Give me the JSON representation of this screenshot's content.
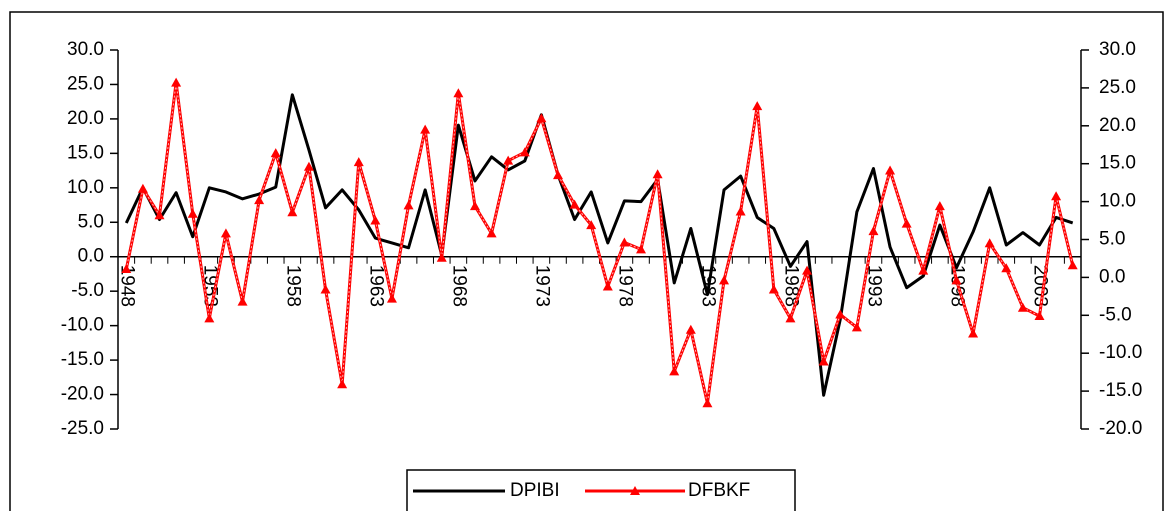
{
  "chart_data": {
    "type": "line",
    "categories": [
      "1948",
      null,
      null,
      null,
      null,
      "1953",
      null,
      null,
      null,
      null,
      "1958",
      null,
      null,
      null,
      null,
      "1963",
      null,
      null,
      null,
      null,
      "1968",
      null,
      null,
      null,
      null,
      "1973",
      null,
      null,
      null,
      null,
      "1978",
      null,
      null,
      null,
      null,
      "1983",
      null,
      null,
      null,
      null,
      "1988",
      null,
      null,
      null,
      null,
      "1993",
      null,
      null,
      null,
      null,
      "1998",
      null,
      null,
      null,
      null,
      "2003",
      null,
      null
    ],
    "series": [
      {
        "name": "DPIBI",
        "color": "#000000",
        "axis": "y",
        "values": [
          4.9,
          10.0,
          5.4,
          9.3,
          2.9,
          10.0,
          9.4,
          8.4,
          9.1,
          10.1,
          23.5,
          15.5,
          7.1,
          9.7,
          6.8,
          2.7,
          2.0,
          1.3,
          9.7,
          0.2,
          19.1,
          11.0,
          14.5,
          12.6,
          13.9,
          20.6,
          11.9,
          5.4,
          9.4,
          2.0,
          8.1,
          8.0,
          11.2,
          -3.8,
          4.1,
          -5.5,
          9.7,
          11.7,
          5.7,
          4.1,
          -1.4,
          2.2,
          -20.1,
          -9.1,
          6.5,
          12.8,
          1.4,
          -4.5,
          -2.8,
          4.6,
          -1.6,
          3.6,
          10.0,
          1.7,
          3.5,
          1.7,
          5.7,
          4.9
        ]
      },
      {
        "name": "DFBKF",
        "color": "#ff0000",
        "axis": "y2",
        "values": [
          1.1,
          11.7,
          8.2,
          25.7,
          8.4,
          -5.4,
          5.8,
          -3.2,
          10.2,
          16.4,
          8.6,
          14.6,
          -1.6,
          -14.1,
          15.2,
          7.5,
          -2.8,
          9.5,
          19.5,
          2.6,
          24.3,
          9.4,
          5.8,
          15.4,
          16.5,
          21.0,
          13.5,
          9.6,
          6.9,
          -1.2,
          4.6,
          3.7,
          13.6,
          -12.4,
          -6.9,
          -16.6,
          -0.4,
          8.7,
          22.6,
          -1.6,
          -5.4,
          0.9,
          -11.1,
          -4.9,
          -6.6,
          6.1,
          14.1,
          7.1,
          0.9,
          9.4,
          -0.4,
          -7.4,
          4.5,
          1.2,
          -4.0,
          -5.1,
          10.7,
          1.6
        ]
      }
    ],
    "ylim": [
      -25,
      30
    ],
    "yticks": [
      {
        "value": 30,
        "label": "30.0"
      },
      {
        "value": 25,
        "label": "25.0"
      },
      {
        "value": 20,
        "label": "20.0"
      },
      {
        "value": 15,
        "label": "15.0"
      },
      {
        "value": 10,
        "label": "10.0"
      },
      {
        "value": 5,
        "label": "5.0"
      },
      {
        "value": 0,
        "label": "0.0"
      },
      {
        "value": -5,
        "label": "-5.0"
      },
      {
        "value": -10,
        "label": "-10.0"
      },
      {
        "value": -15,
        "label": "-15.0"
      },
      {
        "value": -20,
        "label": "-20.0"
      },
      {
        "value": -25,
        "label": "-25.0"
      }
    ],
    "y2lim": [
      -20,
      30
    ],
    "y2ticks": [
      {
        "value": 30,
        "label": "30.0"
      },
      {
        "value": 25,
        "label": "25.0"
      },
      {
        "value": 20,
        "label": "20.0"
      },
      {
        "value": 15,
        "label": "15.0"
      },
      {
        "value": 10,
        "label": "10.0"
      },
      {
        "value": 5,
        "label": "5.0"
      },
      {
        "value": 0,
        "label": "0.0"
      },
      {
        "value": -5,
        "label": "-5.0"
      },
      {
        "value": -10,
        "label": "-10.0"
      },
      {
        "value": -15,
        "label": "-15.0"
      },
      {
        "value": -20,
        "label": "-20.0"
      }
    ],
    "grid": false,
    "legend": "bottom"
  }
}
